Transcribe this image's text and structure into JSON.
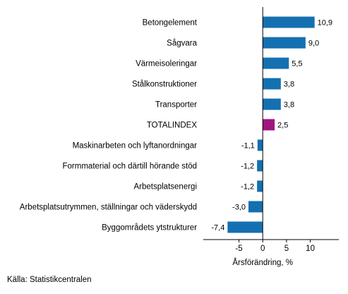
{
  "chart_data": {
    "type": "bar",
    "orientation": "horizontal",
    "categories": [
      "Betongelement",
      "Sågvara",
      "Värmeisoleringar",
      "Stålkonstruktioner",
      "Transporter",
      "TOTALINDEX",
      "Maskinarbeten och lyftanordningar",
      "Formmaterial och därtill hörande stöd",
      "Arbetsplatsenergi",
      "Arbetsplatsutrymmen, ställningar och väderskydd",
      "Byggområdets ytstrukturer"
    ],
    "values": [
      10.9,
      9.0,
      5.5,
      3.8,
      3.8,
      2.5,
      -1.1,
      -1.2,
      -1.2,
      -3.0,
      -7.4
    ],
    "value_labels": [
      "10,9",
      "9,0",
      "5,5",
      "3,8",
      "3,8",
      "2,5",
      "-1,1",
      "-1,2",
      "-1,2",
      "-3,0",
      "-7,4"
    ],
    "highlight_category": "TOTALINDEX",
    "xlabel": "Årsförändring, %",
    "xlim": [
      -12.5,
      16
    ],
    "xticks": [
      -5,
      0,
      5,
      10
    ],
    "xtick_labels": [
      "-5",
      "0",
      "5",
      "10"
    ],
    "grid": false,
    "colors": {
      "bar": "#1470b0",
      "highlight": "#a0157f",
      "axis": "#000000"
    }
  },
  "source": "Källa: Statistikcentralen"
}
